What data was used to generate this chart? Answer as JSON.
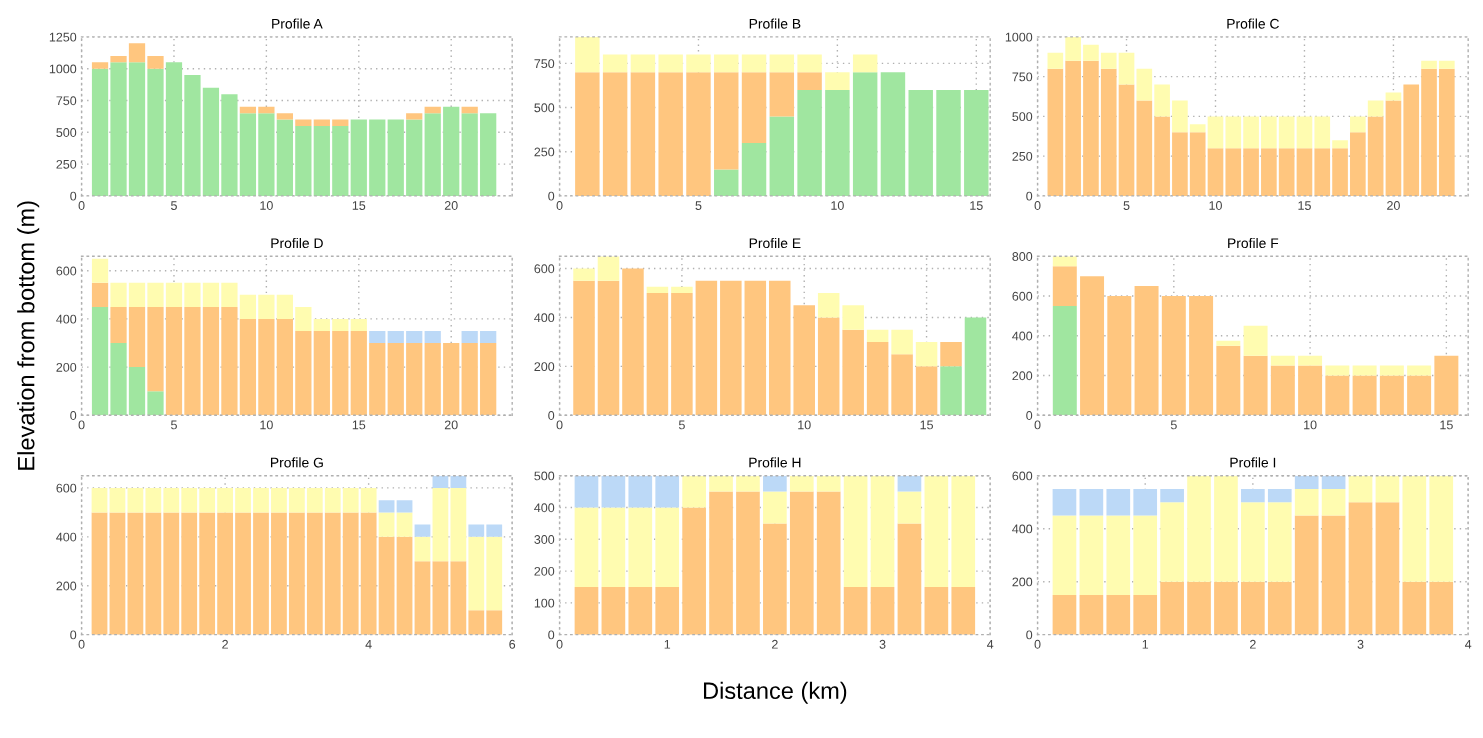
{
  "chart_data": [
    {
      "type": "bar",
      "title": "Profile A",
      "stacked": true,
      "x": [
        1,
        2,
        3,
        4,
        5,
        6,
        7,
        8,
        9,
        10,
        11,
        12,
        13,
        14,
        15,
        16,
        17,
        18,
        19,
        20,
        21,
        22
      ],
      "xlim": [
        0,
        23.3
      ],
      "xticks": [
        0,
        5,
        10,
        15,
        20
      ],
      "ylim": [
        0,
        1250
      ],
      "yticks": [
        0,
        250,
        500,
        750,
        1000,
        1250
      ],
      "grid": true,
      "series": [
        {
          "color": "#a0e6a0",
          "values": [
            1000,
            1050,
            1050,
            1000,
            1050,
            950,
            850,
            800,
            650,
            650,
            600,
            550,
            550,
            550,
            600,
            600,
            600,
            600,
            650,
            700,
            650,
            650
          ]
        },
        {
          "color": "#ffc67f",
          "values": [
            50,
            50,
            150,
            100,
            0,
            0,
            0,
            0,
            50,
            50,
            50,
            50,
            50,
            50,
            0,
            0,
            0,
            50,
            50,
            0,
            50,
            0
          ]
        }
      ]
    },
    {
      "type": "bar",
      "title": "Profile B",
      "stacked": true,
      "x": [
        1,
        2,
        3,
        4,
        5,
        6,
        7,
        8,
        9,
        10,
        11,
        12,
        13,
        14,
        15
      ],
      "xlim": [
        0,
        15.5
      ],
      "xticks": [
        0,
        5,
        10,
        15
      ],
      "ylim": [
        0,
        900
      ],
      "yticks": [
        0,
        250,
        500,
        750
      ],
      "grid": true,
      "series": [
        {
          "color": "#a0e6a0",
          "values": [
            0,
            0,
            0,
            0,
            0,
            150,
            300,
            450,
            600,
            600,
            700,
            700,
            600,
            600,
            600
          ]
        },
        {
          "color": "#ffc67f",
          "values": [
            700,
            700,
            700,
            700,
            700,
            550,
            400,
            250,
            100,
            0,
            0,
            0,
            0,
            0,
            0
          ]
        },
        {
          "color": "#fffcb0",
          "values": [
            200,
            100,
            100,
            100,
            100,
            100,
            100,
            100,
            100,
            100,
            100,
            0,
            0,
            0,
            0
          ]
        }
      ]
    },
    {
      "type": "bar",
      "title": "Profile C",
      "stacked": true,
      "x": [
        1,
        2,
        3,
        4,
        5,
        6,
        7,
        8,
        9,
        10,
        11,
        12,
        13,
        14,
        15,
        16,
        17,
        18,
        19,
        20,
        21,
        22,
        23
      ],
      "xlim": [
        0,
        24.2
      ],
      "xticks": [
        0,
        5,
        10,
        15,
        20
      ],
      "ylim": [
        0,
        1000
      ],
      "yticks": [
        0,
        250,
        500,
        750,
        1000
      ],
      "grid": true,
      "series": [
        {
          "color": "#ffc67f",
          "values": [
            800,
            850,
            850,
            800,
            700,
            600,
            500,
            400,
            400,
            300,
            300,
            300,
            300,
            300,
            300,
            300,
            300,
            400,
            500,
            600,
            700,
            800,
            800
          ]
        },
        {
          "color": "#fffcb0",
          "values": [
            100,
            150,
            100,
            100,
            200,
            200,
            200,
            200,
            50,
            200,
            200,
            200,
            200,
            200,
            200,
            200,
            50,
            100,
            100,
            50,
            0,
            50,
            50
          ]
        }
      ]
    },
    {
      "type": "bar",
      "title": "Profile D",
      "ylabel": "Elevation from bottom (m)",
      "stacked": true,
      "x": [
        1,
        2,
        3,
        4,
        5,
        6,
        7,
        8,
        9,
        10,
        11,
        12,
        13,
        14,
        15,
        16,
        17,
        18,
        19,
        20,
        21,
        22
      ],
      "xlim": [
        0,
        23.3
      ],
      "xticks": [
        0,
        5,
        10,
        15,
        20
      ],
      "ylim": [
        0,
        660
      ],
      "yticks": [
        0,
        200,
        400,
        600
      ],
      "grid": true,
      "series": [
        {
          "color": "#a0e6a0",
          "values": [
            450,
            300,
            200,
            100,
            0,
            0,
            0,
            0,
            0,
            0,
            0,
            0,
            0,
            0,
            0,
            0,
            0,
            0,
            0,
            0,
            0,
            0
          ]
        },
        {
          "color": "#ffc67f",
          "values": [
            100,
            150,
            250,
            350,
            450,
            450,
            450,
            450,
            400,
            400,
            400,
            350,
            350,
            350,
            350,
            300,
            300,
            300,
            300,
            300,
            300,
            300
          ]
        },
        {
          "color": "#fffcb0",
          "values": [
            100,
            100,
            100,
            100,
            100,
            100,
            100,
            100,
            100,
            100,
            100,
            100,
            50,
            50,
            50,
            0,
            0,
            0,
            0,
            0,
            0,
            0
          ]
        },
        {
          "color": "#bcd9f7",
          "values": [
            0,
            0,
            0,
            0,
            0,
            0,
            0,
            0,
            0,
            0,
            0,
            0,
            0,
            0,
            0,
            50,
            50,
            50,
            50,
            0,
            50,
            50
          ]
        }
      ]
    },
    {
      "type": "bar",
      "title": "Profile E",
      "stacked": true,
      "x": [
        1,
        2,
        3,
        4,
        5,
        6,
        7,
        8,
        9,
        10,
        11,
        12,
        13,
        14,
        15,
        16,
        17
      ],
      "xlim": [
        0,
        17.6
      ],
      "xticks": [
        0,
        5,
        10,
        15
      ],
      "ylim": [
        0,
        650
      ],
      "yticks": [
        0,
        200,
        400,
        600
      ],
      "grid": true,
      "series": [
        {
          "color": "#a0e6a0",
          "values": [
            0,
            0,
            0,
            0,
            0,
            0,
            0,
            0,
            0,
            0,
            0,
            0,
            0,
            0,
            0,
            200,
            400
          ]
        },
        {
          "color": "#ffc67f",
          "values": [
            550,
            550,
            600,
            500,
            500,
            550,
            550,
            550,
            550,
            450,
            400,
            350,
            300,
            250,
            200,
            100,
            0
          ]
        },
        {
          "color": "#fffcb0",
          "values": [
            50,
            100,
            0,
            25,
            25,
            0,
            0,
            0,
            0,
            0,
            100,
            100,
            50,
            100,
            100,
            0,
            0
          ]
        }
      ]
    },
    {
      "type": "bar",
      "title": "Profile F",
      "stacked": true,
      "x": [
        1,
        2,
        3,
        4,
        5,
        6,
        7,
        8,
        9,
        10,
        11,
        12,
        13,
        14,
        15
      ],
      "xlim": [
        0,
        15.8
      ],
      "xticks": [
        0,
        5,
        10,
        15
      ],
      "ylim": [
        0,
        800
      ],
      "yticks": [
        0,
        200,
        400,
        600,
        800
      ],
      "grid": true,
      "series": [
        {
          "color": "#a0e6a0",
          "values": [
            550,
            0,
            0,
            0,
            0,
            0,
            0,
            0,
            0,
            0,
            0,
            0,
            0,
            0,
            0
          ]
        },
        {
          "color": "#ffc67f",
          "values": [
            200,
            700,
            600,
            650,
            600,
            600,
            350,
            300,
            250,
            250,
            200,
            200,
            200,
            200,
            300
          ]
        },
        {
          "color": "#fffcb0",
          "values": [
            50,
            0,
            0,
            0,
            0,
            0,
            25,
            150,
            50,
            50,
            50,
            50,
            50,
            50,
            0
          ]
        }
      ]
    },
    {
      "type": "bar",
      "title": "Profile G",
      "stacked": true,
      "x": [
        0.25,
        0.5,
        0.75,
        1,
        1.25,
        1.5,
        1.75,
        2,
        2.25,
        2.5,
        2.75,
        3,
        3.25,
        3.5,
        3.75,
        4,
        4.25,
        4.5,
        4.75,
        5,
        5.25,
        5.5,
        5.75
      ],
      "xlim": [
        0,
        6
      ],
      "xticks": [
        0,
        2,
        4,
        6
      ],
      "ylim": [
        0,
        650
      ],
      "yticks": [
        0,
        200,
        400,
        600
      ],
      "grid": true,
      "series": [
        {
          "color": "#ffc67f",
          "values": [
            500,
            500,
            500,
            500,
            500,
            500,
            500,
            500,
            500,
            500,
            500,
            500,
            500,
            500,
            500,
            500,
            400,
            400,
            300,
            300,
            300,
            100,
            100
          ]
        },
        {
          "color": "#fffcb0",
          "values": [
            100,
            100,
            100,
            100,
            100,
            100,
            100,
            100,
            100,
            100,
            100,
            100,
            100,
            100,
            100,
            100,
            100,
            100,
            100,
            300,
            300,
            300,
            300
          ]
        },
        {
          "color": "#bcd9f7",
          "values": [
            0,
            0,
            0,
            0,
            0,
            0,
            0,
            0,
            0,
            0,
            0,
            0,
            0,
            0,
            0,
            0,
            50,
            50,
            50,
            50,
            50,
            50,
            50
          ]
        }
      ]
    },
    {
      "type": "bar",
      "title": "Profile H",
      "xlabel": "Distance (km)",
      "stacked": true,
      "x": [
        0.25,
        0.5,
        0.75,
        1,
        1.25,
        1.5,
        1.75,
        2,
        2.25,
        2.5,
        2.75,
        3,
        3.25,
        3.5,
        3.75
      ],
      "xlim": [
        0,
        4
      ],
      "xticks": [
        0,
        1,
        2,
        3,
        4
      ],
      "ylim": [
        0,
        500
      ],
      "yticks": [
        0,
        100,
        200,
        300,
        400,
        500
      ],
      "grid": true,
      "series": [
        {
          "color": "#ffc67f",
          "values": [
            150,
            150,
            150,
            150,
            400,
            450,
            450,
            350,
            450,
            450,
            150,
            150,
            350,
            150,
            150
          ]
        },
        {
          "color": "#fffcb0",
          "values": [
            250,
            250,
            250,
            250,
            100,
            50,
            50,
            100,
            50,
            50,
            350,
            350,
            100,
            350,
            350
          ]
        },
        {
          "color": "#bcd9f7",
          "values": [
            100,
            100,
            100,
            100,
            0,
            0,
            0,
            50,
            0,
            0,
            0,
            0,
            50,
            0,
            0
          ]
        }
      ]
    },
    {
      "type": "bar",
      "title": "Profile I",
      "stacked": true,
      "x": [
        0.25,
        0.5,
        0.75,
        1,
        1.25,
        1.5,
        1.75,
        2,
        2.25,
        2.5,
        2.75,
        3,
        3.25,
        3.5,
        3.75
      ],
      "xlim": [
        0,
        4
      ],
      "xticks": [
        0,
        1,
        2,
        3,
        4
      ],
      "ylim": [
        0,
        600
      ],
      "yticks": [
        0,
        200,
        400,
        600
      ],
      "grid": true,
      "series": [
        {
          "color": "#ffc67f",
          "values": [
            150,
            150,
            150,
            150,
            200,
            200,
            200,
            200,
            200,
            450,
            450,
            500,
            500,
            200,
            200
          ]
        },
        {
          "color": "#fffcb0",
          "values": [
            300,
            300,
            300,
            300,
            300,
            400,
            400,
            300,
            300,
            100,
            100,
            100,
            100,
            400,
            400
          ]
        },
        {
          "color": "#bcd9f7",
          "values": [
            100,
            100,
            100,
            100,
            50,
            0,
            0,
            50,
            50,
            50,
            50,
            0,
            0,
            0,
            0
          ]
        }
      ]
    }
  ]
}
